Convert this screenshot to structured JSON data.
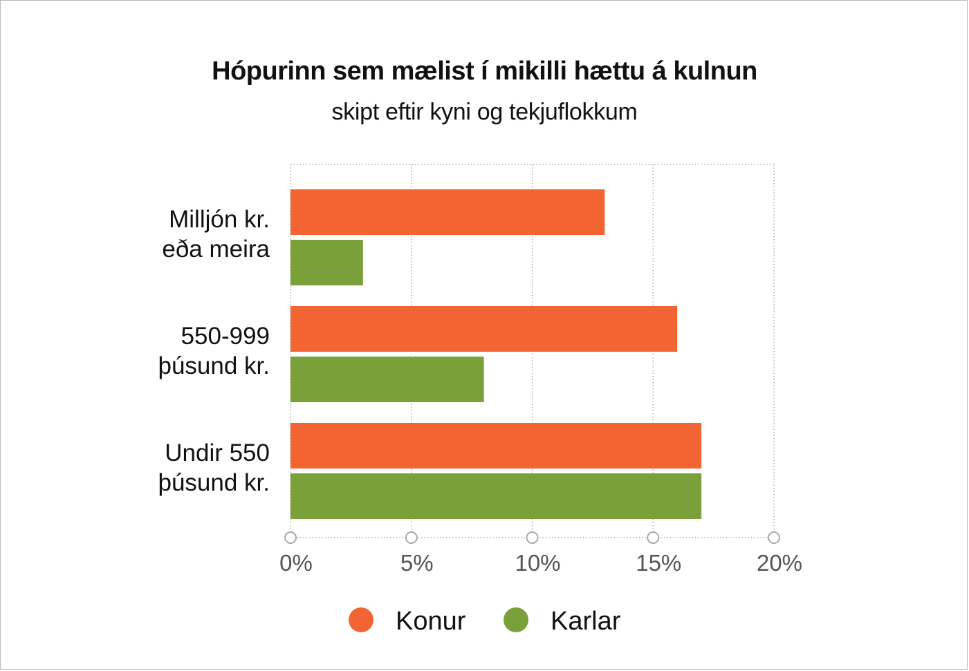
{
  "title": "Hópurinn sem mælist í mikilli hættu á kulnun",
  "subtitle": "skipt eftir kyni og tekjuflokkum",
  "colors": {
    "konur": "#f26532",
    "karlar": "#7aa03a",
    "grid": "#9a9a9a",
    "text": "#111111",
    "tick": "#555555"
  },
  "chart_data": {
    "type": "bar",
    "orientation": "horizontal",
    "categories": [
      [
        "Milljón kr.",
        "eða meira"
      ],
      [
        "550-999",
        "þúsund kr."
      ],
      [
        "Undir 550",
        "þúsund kr."
      ]
    ],
    "series": [
      {
        "name": "Konur",
        "color": "#f26532",
        "values": [
          13,
          16,
          17
        ]
      },
      {
        "name": "Karlar",
        "color": "#7aa03a",
        "values": [
          3,
          8,
          17
        ]
      }
    ],
    "xlim": [
      0,
      20
    ],
    "xticks": [
      0,
      5,
      10,
      15,
      20
    ],
    "tick_labels": [
      "0%",
      "5%",
      "10%",
      "15%",
      "20%"
    ],
    "unit": "%",
    "grid": true,
    "legend_position": "bottom"
  }
}
